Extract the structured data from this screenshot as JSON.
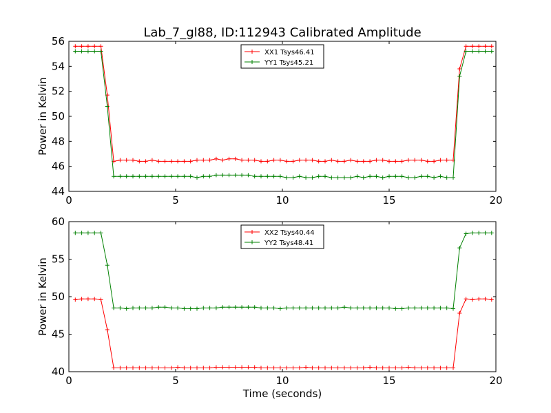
{
  "figure": {
    "title": "Lab_7_gl88, ID:112943 Calibrated Amplitude",
    "xlabel": "Time (seconds)"
  },
  "chart_data": [
    {
      "type": "line",
      "title": "Lab_7_gl88, ID:112943 Calibrated Amplitude",
      "xlabel": "",
      "ylabel": "Power in Kelvin",
      "xlim": [
        0,
        20
      ],
      "ylim": [
        44,
        56
      ],
      "xticks": [
        "0",
        "5",
        "10",
        "15",
        "20"
      ],
      "yticks": [
        "44",
        "46",
        "48",
        "50",
        "52",
        "54",
        "56"
      ],
      "legend_position": "top-center",
      "x": [
        0.3,
        0.6,
        0.9,
        1.2,
        1.5,
        1.8,
        2.1,
        2.4,
        2.7,
        3.0,
        3.3,
        3.6,
        3.9,
        4.2,
        4.5,
        4.8,
        5.1,
        5.4,
        5.7,
        6.0,
        6.3,
        6.6,
        6.9,
        7.2,
        7.5,
        7.8,
        8.1,
        8.4,
        8.7,
        9.0,
        9.3,
        9.6,
        9.9,
        10.2,
        10.5,
        10.8,
        11.1,
        11.4,
        11.7,
        12.0,
        12.3,
        12.6,
        12.9,
        13.2,
        13.5,
        13.8,
        14.1,
        14.4,
        14.7,
        15.0,
        15.3,
        15.6,
        15.9,
        16.2,
        16.5,
        16.8,
        17.1,
        17.4,
        17.7,
        18.0,
        18.3,
        18.6,
        18.9,
        19.2,
        19.5,
        19.8
      ],
      "series": [
        {
          "name": "XX1 Tsys46.41",
          "color": "#ff0000",
          "values": [
            55.6,
            55.6,
            55.6,
            55.6,
            55.6,
            51.7,
            46.4,
            46.5,
            46.5,
            46.5,
            46.4,
            46.4,
            46.5,
            46.4,
            46.4,
            46.4,
            46.4,
            46.4,
            46.4,
            46.5,
            46.5,
            46.5,
            46.6,
            46.5,
            46.6,
            46.6,
            46.5,
            46.5,
            46.5,
            46.4,
            46.4,
            46.5,
            46.5,
            46.4,
            46.4,
            46.5,
            46.5,
            46.5,
            46.4,
            46.4,
            46.5,
            46.4,
            46.4,
            46.5,
            46.4,
            46.4,
            46.4,
            46.5,
            46.5,
            46.4,
            46.4,
            46.4,
            46.5,
            46.5,
            46.5,
            46.4,
            46.4,
            46.5,
            46.5,
            46.5,
            53.8,
            55.6,
            55.6,
            55.6,
            55.6,
            55.6
          ]
        },
        {
          "name": "YY1 Tsys45.21",
          "color": "#008000",
          "values": [
            55.2,
            55.2,
            55.2,
            55.2,
            55.2,
            50.8,
            45.2,
            45.2,
            45.2,
            45.2,
            45.2,
            45.2,
            45.2,
            45.2,
            45.2,
            45.2,
            45.2,
            45.2,
            45.2,
            45.1,
            45.2,
            45.2,
            45.3,
            45.3,
            45.3,
            45.3,
            45.3,
            45.3,
            45.2,
            45.2,
            45.2,
            45.2,
            45.2,
            45.1,
            45.1,
            45.2,
            45.1,
            45.1,
            45.2,
            45.2,
            45.1,
            45.1,
            45.1,
            45.1,
            45.2,
            45.1,
            45.2,
            45.2,
            45.1,
            45.2,
            45.2,
            45.2,
            45.1,
            45.1,
            45.2,
            45.2,
            45.1,
            45.2,
            45.1,
            45.1,
            53.2,
            55.2,
            55.2,
            55.2,
            55.2,
            55.2
          ]
        }
      ]
    },
    {
      "type": "line",
      "title": "",
      "xlabel": "Time (seconds)",
      "ylabel": "Power in Kelvin",
      "xlim": [
        0,
        20
      ],
      "ylim": [
        40,
        60
      ],
      "xticks": [
        "0",
        "5",
        "10",
        "15",
        "20"
      ],
      "yticks": [
        "40",
        "45",
        "50",
        "55",
        "60"
      ],
      "legend_position": "top-center",
      "x": [
        0.3,
        0.6,
        0.9,
        1.2,
        1.5,
        1.8,
        2.1,
        2.4,
        2.7,
        3.0,
        3.3,
        3.6,
        3.9,
        4.2,
        4.5,
        4.8,
        5.1,
        5.4,
        5.7,
        6.0,
        6.3,
        6.6,
        6.9,
        7.2,
        7.5,
        7.8,
        8.1,
        8.4,
        8.7,
        9.0,
        9.3,
        9.6,
        9.9,
        10.2,
        10.5,
        10.8,
        11.1,
        11.4,
        11.7,
        12.0,
        12.3,
        12.6,
        12.9,
        13.2,
        13.5,
        13.8,
        14.1,
        14.4,
        14.7,
        15.0,
        15.3,
        15.6,
        15.9,
        16.2,
        16.5,
        16.8,
        17.1,
        17.4,
        17.7,
        18.0,
        18.3,
        18.6,
        18.9,
        19.2,
        19.5,
        19.8
      ],
      "series": [
        {
          "name": "XX2 Tsys40.44",
          "color": "#ff0000",
          "values": [
            49.6,
            49.7,
            49.7,
            49.7,
            49.6,
            45.6,
            40.5,
            40.5,
            40.5,
            40.5,
            40.5,
            40.5,
            40.5,
            40.5,
            40.5,
            40.5,
            40.6,
            40.5,
            40.5,
            40.5,
            40.5,
            40.5,
            40.6,
            40.6,
            40.6,
            40.6,
            40.6,
            40.6,
            40.6,
            40.5,
            40.5,
            40.5,
            40.5,
            40.5,
            40.5,
            40.5,
            40.6,
            40.5,
            40.5,
            40.5,
            40.5,
            40.5,
            40.5,
            40.5,
            40.5,
            40.5,
            40.6,
            40.5,
            40.5,
            40.5,
            40.5,
            40.5,
            40.6,
            40.5,
            40.5,
            40.5,
            40.5,
            40.5,
            40.5,
            40.5,
            47.8,
            49.7,
            49.6,
            49.7,
            49.7,
            49.6
          ]
        },
        {
          "name": "YY2 Tsys48.41",
          "color": "#008000",
          "values": [
            58.5,
            58.5,
            58.5,
            58.5,
            58.5,
            54.2,
            48.5,
            48.5,
            48.4,
            48.5,
            48.5,
            48.5,
            48.5,
            48.6,
            48.6,
            48.5,
            48.5,
            48.4,
            48.4,
            48.4,
            48.5,
            48.5,
            48.5,
            48.6,
            48.6,
            48.6,
            48.6,
            48.6,
            48.6,
            48.5,
            48.5,
            48.5,
            48.4,
            48.5,
            48.5,
            48.5,
            48.5,
            48.5,
            48.5,
            48.5,
            48.5,
            48.5,
            48.6,
            48.5,
            48.5,
            48.5,
            48.5,
            48.5,
            48.5,
            48.5,
            48.4,
            48.4,
            48.5,
            48.5,
            48.5,
            48.5,
            48.5,
            48.5,
            48.5,
            48.4,
            56.5,
            58.4,
            58.5,
            58.5,
            58.5,
            58.5
          ]
        }
      ]
    }
  ]
}
